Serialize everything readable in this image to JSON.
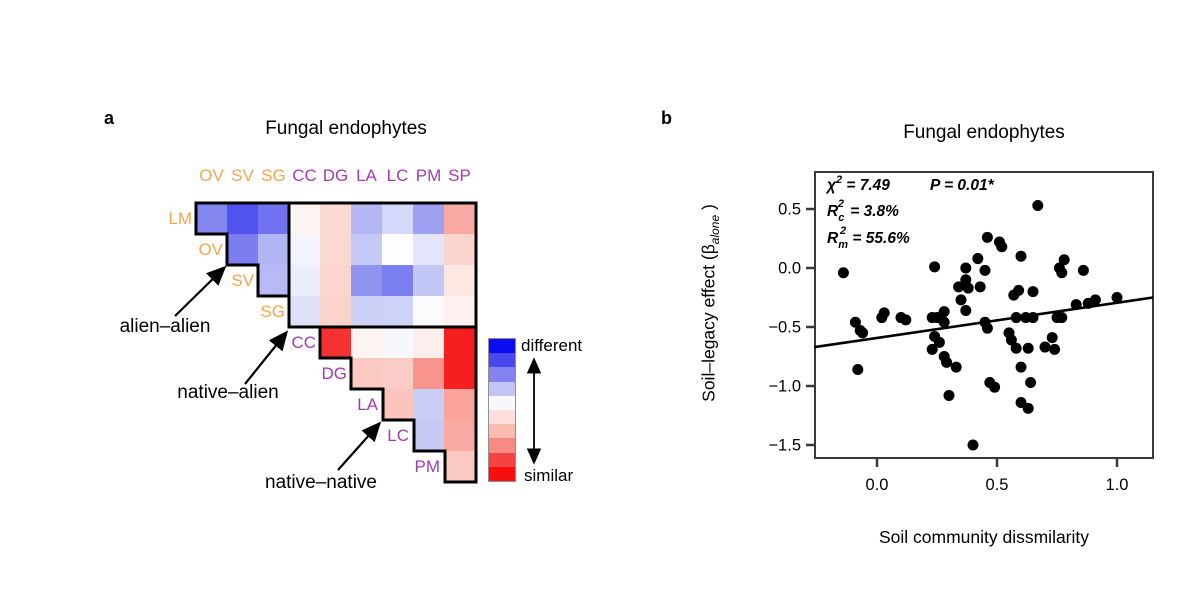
{
  "figure": {
    "panel_a_letter": "a",
    "panel_b_letter": "b"
  },
  "panel_a": {
    "title": "Fungal endophytes",
    "annotations": {
      "alien_alien": "alien–alien",
      "native_alien": "native–alien",
      "native_native": "native–native"
    },
    "label_colors": {
      "alien": "#F9A34C",
      "native": "#A43BB4"
    },
    "colorbar": {
      "top_label": "different",
      "bottom_label": "similar",
      "colors": [
        "#0c0cf0",
        "#4848ee",
        "#8484f0",
        "#c2c4f6",
        "#f7f7fd",
        "#fcdeda",
        "#fabbb3",
        "#f78a82",
        "#f54242",
        "#f90d0d"
      ]
    }
  },
  "panel_b": {
    "title": "Fungal endophytes",
    "xlabel": "Soil community dissmilarity",
    "ylabel_prefix": "Soil–legacy effect (β",
    "ylabel_sub": "alone",
    "ylabel_suffix": " )",
    "stats": {
      "chi_symbol": "χ",
      "chi_sup": "2",
      "chi_value": " = 7.49",
      "p_value": "P = 0.01*",
      "rc_base": "R",
      "rc_sub": "c",
      "rc_sup": "2",
      "rc_value": " = 3.8%",
      "rm_base": "R",
      "rm_sub": "m",
      "rm_sup": "2",
      "rm_value": " = 55.6%"
    }
  },
  "chart_data": [
    {
      "type": "heatmap",
      "title": "Fungal endophytes",
      "columns": [
        "OV",
        "SV",
        "SG",
        "CC",
        "DG",
        "LA",
        "LC",
        "PM",
        "SP"
      ],
      "column_groups": [
        "alien",
        "alien",
        "alien",
        "native",
        "native",
        "native",
        "native",
        "native",
        "native"
      ],
      "rows": [
        "LM",
        "OV",
        "SV",
        "SG",
        "CC",
        "DG",
        "LA",
        "LC",
        "PM"
      ],
      "row_groups": [
        "alien",
        "alien",
        "alien",
        "alien",
        "native",
        "native",
        "native",
        "native",
        "native"
      ],
      "row_start_col": [
        0,
        1,
        2,
        3,
        4,
        5,
        6,
        7,
        8
      ],
      "cell_colors": [
        [
          "#8486ef",
          "#5153ee",
          "#7173f0",
          "#fdf5f1",
          "#fbd9d2",
          "#b4b7f4",
          "#d6d8f9",
          "#9ea1f2",
          "#f9a9a2"
        ],
        [
          "#7c7ef0",
          "#b2b5f3",
          "#f4f5fc",
          "#fbd8d1",
          "#c6c9f6",
          "#fefeff",
          "#e3e5fb",
          "#fbd4cd"
        ],
        [
          "#b7baf4",
          "#eceefb",
          "#fbd5ce",
          "#9193f1",
          "#7c7ff0",
          "#c3c7f5",
          "#fde8e4"
        ],
        [
          "#dfe1f8",
          "#f9d4cd",
          "#ccd0f6",
          "#ced2f7",
          "#fbfbfd",
          "#fdf2ef"
        ],
        [
          "#f53232",
          "#fdf4f2",
          "#f7f8fd",
          "#fdedeb",
          "#f51f1f"
        ],
        [
          "#fbc9c1",
          "#fbccc5",
          "#f8948c",
          "#f51f1f"
        ],
        [
          "#fbc4bc",
          "#c9cdf5",
          "#f9a39b"
        ],
        [
          "#c5caf4",
          "#f9a9a1"
        ],
        [
          "#fbc9c2"
        ]
      ],
      "legend": {
        "high": "different",
        "low": "similar"
      },
      "blocks": [
        "alien–alien",
        "native–alien",
        "native–native"
      ]
    },
    {
      "type": "scatter",
      "title": "Fungal endophytes",
      "xlabel": "Soil community dissmilarity",
      "ylabel": "Soil–legacy effect (β_alone)",
      "xlim": [
        -0.26,
        1.15
      ],
      "ylim": [
        -1.61,
        0.81
      ],
      "grid": false,
      "xticks": [
        {
          "label": "0.0",
          "value": 0.0
        },
        {
          "label": "0.5",
          "value": 0.5
        },
        {
          "label": "1.0",
          "value": 1.0
        }
      ],
      "yticks": [
        {
          "label": "0.5",
          "value": 0.5
        },
        {
          "label": "0.0",
          "value": 0.0
        },
        {
          "label": "-0.5",
          "value": -0.5
        },
        {
          "label": "-1.0",
          "value": -1.0
        },
        {
          "label": "-1.5",
          "value": -1.5
        }
      ],
      "points": [
        [
          -0.14,
          -0.04
        ],
        [
          0.24,
          0.01
        ],
        [
          0.37,
          0.0
        ],
        [
          0.42,
          0.08
        ],
        [
          0.37,
          -0.1
        ],
        [
          0.38,
          -0.17
        ],
        [
          0.34,
          -0.16
        ],
        [
          0.43,
          -0.16
        ],
        [
          0.35,
          -0.27
        ],
        [
          0.37,
          -0.36
        ],
        [
          0.03,
          -0.38
        ],
        [
          0.28,
          -0.37
        ],
        [
          0.67,
          0.53
        ],
        [
          0.46,
          0.26
        ],
        [
          0.51,
          0.22
        ],
        [
          0.52,
          0.18
        ],
        [
          0.6,
          0.1
        ],
        [
          0.78,
          0.07
        ],
        [
          0.76,
          0.0
        ],
        [
          0.77,
          -0.04
        ],
        [
          0.86,
          -0.02
        ],
        [
          0.45,
          -0.02
        ],
        [
          0.59,
          -0.19
        ],
        [
          0.65,
          -0.2
        ],
        [
          0.57,
          -0.23
        ],
        [
          0.83,
          -0.31
        ],
        [
          0.91,
          -0.27
        ],
        [
          0.88,
          -0.3
        ],
        [
          1.0,
          -0.25
        ],
        [
          -0.09,
          -0.46
        ],
        [
          -0.07,
          -0.53
        ],
        [
          -0.06,
          -0.55
        ],
        [
          0.02,
          -0.42
        ],
        [
          0.1,
          -0.42
        ],
        [
          0.12,
          -0.44
        ],
        [
          0.23,
          -0.42
        ],
        [
          0.25,
          -0.42
        ],
        [
          0.28,
          -0.46
        ],
        [
          0.24,
          -0.58
        ],
        [
          0.26,
          -0.63
        ],
        [
          0.28,
          -0.75
        ],
        [
          0.29,
          -0.8
        ],
        [
          -0.08,
          -0.86
        ],
        [
          0.23,
          -0.69
        ],
        [
          0.33,
          -0.84
        ],
        [
          0.3,
          -1.08
        ],
        [
          0.4,
          -1.5
        ],
        [
          0.45,
          -0.46
        ],
        [
          0.46,
          -0.51
        ],
        [
          0.55,
          -0.55
        ],
        [
          0.56,
          -0.61
        ],
        [
          0.58,
          -0.42
        ],
        [
          0.62,
          -0.42
        ],
        [
          0.65,
          -0.42
        ],
        [
          0.58,
          -0.68
        ],
        [
          0.63,
          -0.68
        ],
        [
          0.7,
          -0.67
        ],
        [
          0.73,
          -0.59
        ],
        [
          0.74,
          -0.69
        ],
        [
          0.75,
          -0.42
        ],
        [
          0.77,
          -0.42
        ],
        [
          0.6,
          -0.84
        ],
        [
          0.64,
          -0.97
        ],
        [
          0.47,
          -0.97
        ],
        [
          0.49,
          -1.01
        ],
        [
          0.6,
          -1.14
        ],
        [
          0.63,
          -1.19
        ]
      ],
      "fit_line": {
        "x1": -0.26,
        "y1": -0.67,
        "x2": 1.15,
        "y2": -0.25
      },
      "annotations": [
        "χ2 = 7.49   P = 0.01*",
        "Rc2 = 3.8%",
        "Rm2 = 55.6%"
      ]
    }
  ]
}
